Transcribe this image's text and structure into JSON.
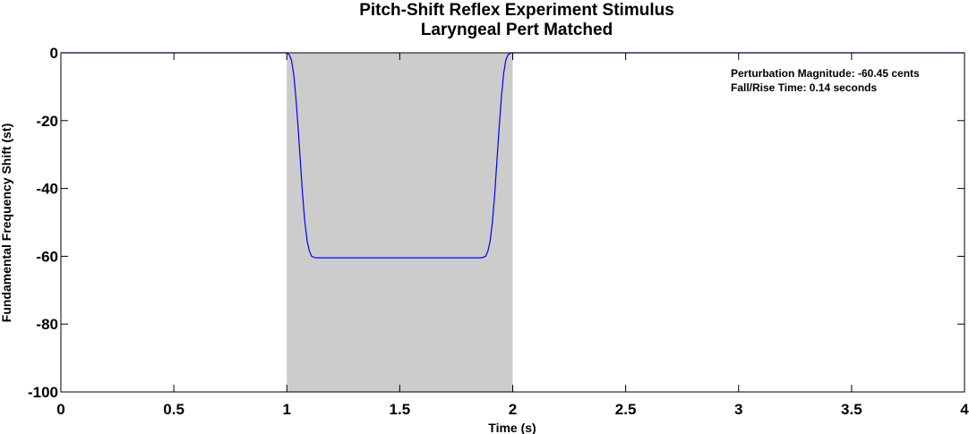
{
  "chart_data": {
    "type": "line",
    "title": "Pitch-Shift Reflex Experiment Stimulus",
    "subtitle": "Laryngeal Pert Matched",
    "xlabel": "Time (s)",
    "ylabel": "Fundamental Frequency Shift (st)",
    "xlim": [
      0,
      4
    ],
    "ylim": [
      -100,
      0
    ],
    "xticks": [
      0,
      0.5,
      1,
      1.5,
      2,
      2.5,
      3,
      3.5,
      4
    ],
    "xtick_labels": [
      "0",
      "0.5",
      "1",
      "1.5",
      "2",
      "2.5",
      "3",
      "3.5",
      "4"
    ],
    "yticks": [
      0,
      -20,
      -40,
      -60,
      -80,
      -100
    ],
    "ytick_labels": [
      "0",
      "-20",
      "-40",
      "-60",
      "-80",
      "-100"
    ],
    "grid": false,
    "shaded_region": {
      "x": [
        1,
        2
      ],
      "color": "#cccccc"
    },
    "series": [
      {
        "color": "#0000ff",
        "x": [
          0,
          1.0,
          1.01,
          1.02,
          1.03,
          1.04,
          1.05,
          1.06,
          1.07,
          1.08,
          1.09,
          1.1,
          1.11,
          1.12,
          1.13,
          1.14,
          1.86,
          1.87,
          1.88,
          1.89,
          1.9,
          1.91,
          1.92,
          1.93,
          1.94,
          1.95,
          1.96,
          1.97,
          1.98,
          1.99,
          2.0,
          4
        ],
        "y": [
          0,
          0,
          -0.5,
          -2,
          -6,
          -13,
          -22,
          -32,
          -42,
          -50,
          -55.5,
          -58.5,
          -60,
          -60.3,
          -60.45,
          -60.45,
          -60.45,
          -60.3,
          -60,
          -58.5,
          -55.5,
          -50,
          -42,
          -32,
          -22,
          -13,
          -6,
          -2,
          -0.5,
          -0.1,
          0,
          0
        ]
      }
    ],
    "annotations": [
      "Perturbation Magnitude: -60.45 cents",
      "Fall/Rise Time: 0.14 seconds"
    ]
  },
  "colors": {
    "axes": "#000000",
    "shade": "#cccccc",
    "line": "#0000ff",
    "background": "#ffffff"
  }
}
